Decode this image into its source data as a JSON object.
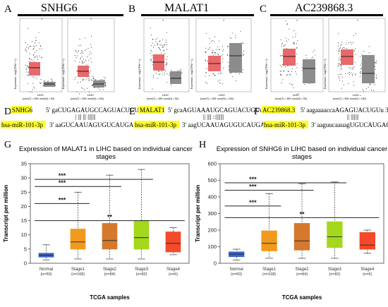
{
  "panels": {
    "A": {
      "letter": "A",
      "gene": "SNHG6",
      "ylabel": "Expression - log2(TPM + 1)",
      "sub_label": "LIHC",
      "left_counts": "(num(T) = 369; num(N) = 50)",
      "right_counts": "(num(T) = 369; num(N) = 160)"
    },
    "B": {
      "letter": "B",
      "gene": "MALAT1",
      "ylabel": "Expression - log2(TPM + 1)",
      "sub_label": "LIHC",
      "left_counts": "(num(T) = 369; num(N) = 50)",
      "right_counts": "(num(T) = 369; num(N) = 160)"
    },
    "C": {
      "letter": "C",
      "gene": "AC239868.3",
      "ylabel": "Expression - log2(TPM + 1)",
      "sub_label": "LIHC",
      "left_counts": "(num(T) = 369; num(N) = 50)",
      "right_counts": "(num(T) = 369; num(N) = 160)"
    },
    "D": {
      "letter": "D",
      "gene": "SNHG6",
      "mirna": "hsa-miR-101-3p",
      "top_seq": "5' gaCUGAGAUGCCAGUACUGUa 3'",
      "pairs": "| ||| ||| |||||||",
      "bottom_seq": "3' aaGUCAAUAGUGUCAUGACAu 5'"
    },
    "E": {
      "letter": "E",
      "gene": "MALAT1",
      "mirna": "hsa-miR-101-3p",
      "top_seq": "5' gcaAGUAAAUGCAGUACUGUu 3'",
      "pairs": "|| ||||  ::|||||||",
      "bottom_seq": "3' aagUCAAUAGUGUCAUGACAu 5'"
    },
    "F": {
      "letter": "F",
      "gene": "AC239868.3",
      "mirna": "hsa-miR-101-3p",
      "top_seq": "5' aagaaaaccaAGAGUACUGUu 3'",
      "pairs": "||  |||||||",
      "bottom_seq": "3' aaguucaauagUGUCAUGACAu 5'"
    },
    "G": {
      "letter": "G",
      "title_line1": "Expression of MALAT1 in LIHC based on individual cancer",
      "title_line2": "stages"
    },
    "H": {
      "letter": "H",
      "title_line1": "Expression of SNHG6 in LIHC based on individual cancer",
      "title_line2": "stages"
    }
  },
  "colors": {
    "tumor": "#e8696b",
    "normal_gray": "#8c8c8c",
    "highlight": "#ffff2e",
    "normal_blue": "#3a64c8",
    "stage1": "#f09a1e",
    "stage2": "#d4792e",
    "stage3": "#a4d81c",
    "stage4": "#f24a2a",
    "significance_red": "#e02020"
  },
  "chart_data": [
    {
      "type": "box",
      "panel": "G",
      "title": "Expression of MALAT1 in LIHC based on individual cancer stages",
      "xlabel": "TCGA samples",
      "ylabel": "Transcript per million",
      "ylim": [
        0,
        35
      ],
      "yticks": [
        0,
        5,
        10,
        15,
        20,
        25,
        30,
        35
      ],
      "categories": [
        "Normal",
        "Stage1",
        "Stage2",
        "Stage3",
        "Stage4"
      ],
      "category_counts": [
        "(n=50)",
        "(n=168)",
        "(n=84)",
        "(n=82)",
        "(n=6)"
      ],
      "boxes": [
        {
          "min": 1.2,
          "q1": 2.2,
          "median": 2.8,
          "q3": 3.5,
          "max": 6.5
        },
        {
          "min": 1.5,
          "q1": 5.0,
          "median": 7.5,
          "q3": 12.0,
          "max": 25.0
        },
        {
          "min": 1.5,
          "q1": 5.0,
          "median": 8.0,
          "q3": 14.0,
          "max": 31.0
        },
        {
          "min": 1.5,
          "q1": 5.0,
          "median": 9.0,
          "q3": 15.0,
          "max": 33.0
        },
        {
          "min": 3.0,
          "q1": 4.0,
          "median": 7.0,
          "q3": 11.0,
          "max": 12.5
        }
      ],
      "significance": [
        {
          "from": 0,
          "to": 1,
          "label": "***",
          "y": 21.0
        },
        {
          "from": 0,
          "to": 2,
          "label": "***",
          "y": 27.0
        },
        {
          "from": 0,
          "to": 3,
          "label": "***",
          "y": 29.5
        },
        {
          "from": 0,
          "to": 4,
          "label": "**",
          "y": 15.0
        }
      ]
    },
    {
      "type": "box",
      "panel": "H",
      "title": "Expression of SNHG6 in LIHC based on individual cancer stages",
      "xlabel": "TCGA samples",
      "ylabel": "Transcript per million",
      "ylim": [
        0,
        600
      ],
      "yticks": [
        0,
        100,
        200,
        300,
        400,
        500,
        600
      ],
      "categories": [
        "Normal",
        "Stage1",
        "Stage2",
        "Stage3",
        "Stage4"
      ],
      "category_counts": [
        "(n=50)",
        "(n=168)",
        "(n=84)",
        "(n=82)",
        "(n=6)"
      ],
      "boxes": [
        {
          "min": 20,
          "q1": 40,
          "median": 55,
          "q3": 68,
          "max": 85
        },
        {
          "min": 30,
          "q1": 75,
          "median": 120,
          "q3": 195,
          "max": 420
        },
        {
          "min": 30,
          "q1": 80,
          "median": 135,
          "q3": 240,
          "max": 480
        },
        {
          "min": 30,
          "q1": 95,
          "median": 160,
          "q3": 250,
          "max": 490
        },
        {
          "min": 60,
          "q1": 85,
          "median": 110,
          "q3": 185,
          "max": 200
        }
      ],
      "significance": [
        {
          "from": 0,
          "to": 1,
          "label": "***",
          "y": 345
        },
        {
          "from": 0,
          "to": 2,
          "label": "***",
          "y": 440
        },
        {
          "from": 0,
          "to": 3,
          "label": "***",
          "y": 485
        },
        {
          "from": 0,
          "to": 4,
          "label": "**",
          "y": 275
        }
      ]
    }
  ]
}
